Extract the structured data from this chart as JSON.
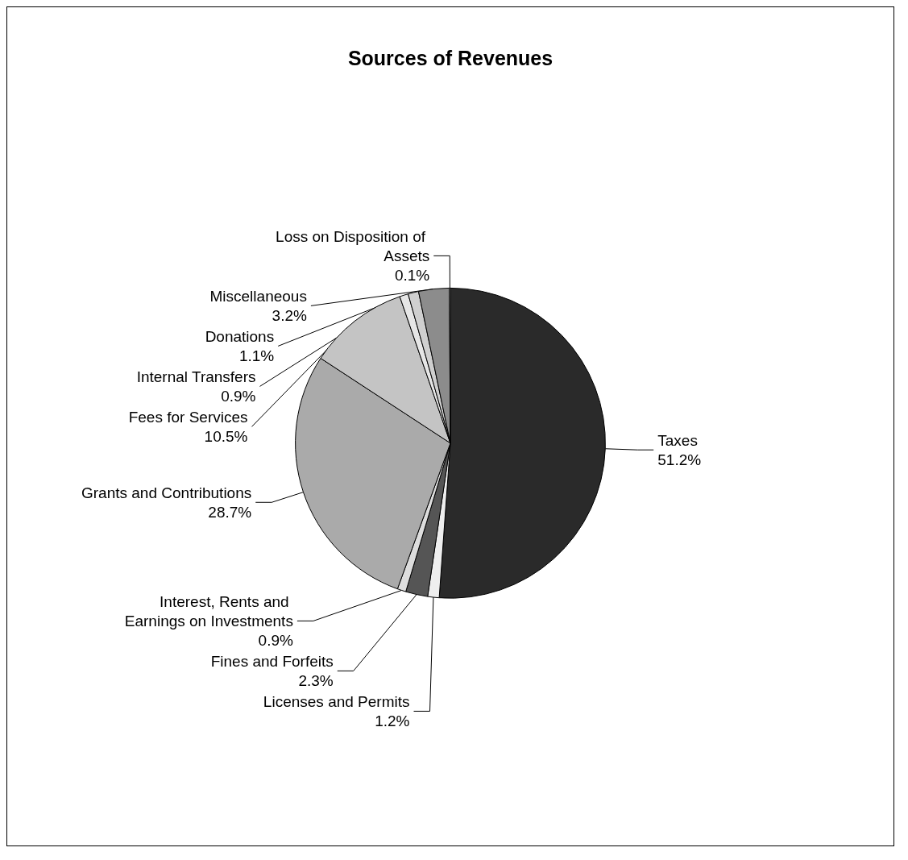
{
  "chart_data": {
    "type": "pie",
    "title": "Sources of Revenues",
    "categories": [
      "Taxes",
      "Licenses and Permits",
      "Fines and Forfeits",
      "Interest, Rents and Earnings on Investments",
      "Grants and Contributions",
      "Fees for Services",
      "Internal Transfers",
      "Donations",
      "Miscellaneous",
      "Loss on Disposition of Assets"
    ],
    "values": [
      51.2,
      1.2,
      2.3,
      0.9,
      28.7,
      10.5,
      0.9,
      1.1,
      3.2,
      0.1
    ],
    "value_labels": [
      "51.2%",
      "1.2%",
      "2.3%",
      "0.9%",
      "28.7%",
      "10.5%",
      "0.9%",
      "1.1%",
      "3.2%",
      "0.1%"
    ],
    "colors": [
      "#2a2a2a",
      "#eeeeee",
      "#555555",
      "#dddddd",
      "#aaaaaa",
      "#c4c4c4",
      "#e6e6e6",
      "#cfcfcf",
      "#8c8c8c",
      "#ffffff"
    ],
    "legend": false
  }
}
